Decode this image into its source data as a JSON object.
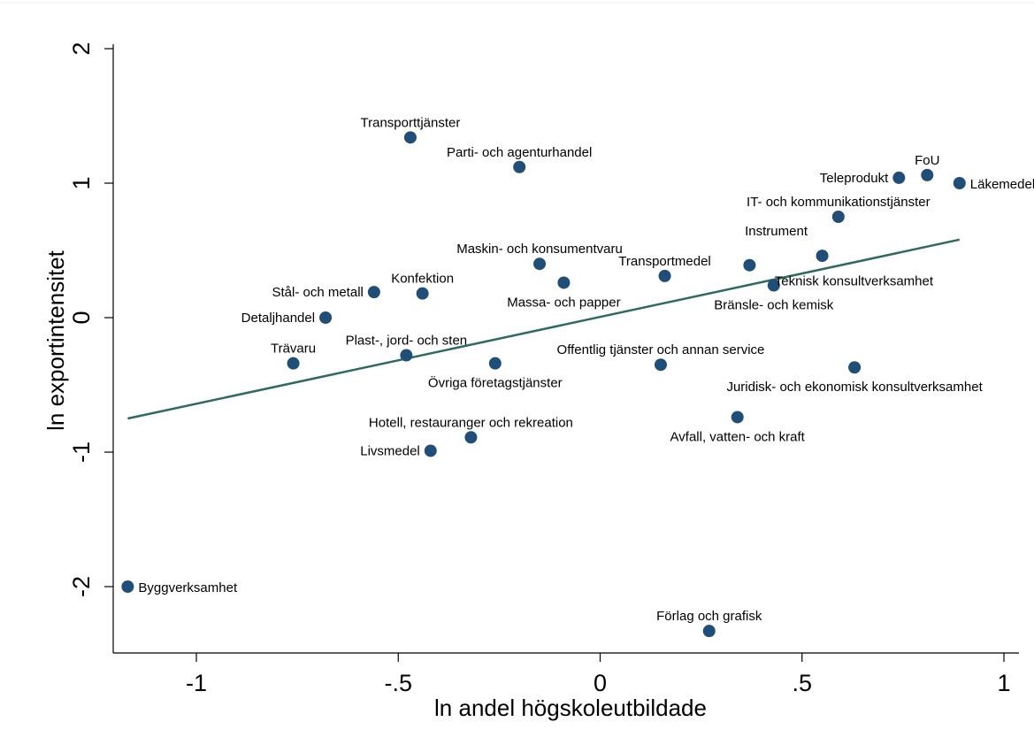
{
  "chart_data": {
    "type": "scatter",
    "title": "",
    "xlabel": "ln andel högskoleutbildade",
    "ylabel": "ln exportintensitet",
    "xlim": [
      -1.2,
      1.05
    ],
    "ylim": [
      -2.45,
      2.1
    ],
    "xticks": [
      {
        "value": -1,
        "label": "-1"
      },
      {
        "value": -0.5,
        "label": "-.5"
      },
      {
        "value": 0,
        "label": "0"
      },
      {
        "value": 0.5,
        "label": ".5"
      },
      {
        "value": 1,
        "label": "1"
      }
    ],
    "yticks": [
      {
        "value": -2,
        "label": "-2"
      },
      {
        "value": -1,
        "label": "-1"
      },
      {
        "value": 0,
        "label": "0"
      },
      {
        "value": 1,
        "label": "1"
      },
      {
        "value": 2,
        "label": "2"
      }
    ],
    "grid": false,
    "legend": "none",
    "colors": {
      "marker": "#1f4e79",
      "fit_line": "#2e6b5e"
    },
    "fit_line": {
      "x": [
        -1.17,
        0.89
      ],
      "y": [
        -0.75,
        0.58
      ]
    },
    "points": [
      {
        "label": "Transporttjänster",
        "x": -0.47,
        "y": 1.34,
        "pos": "above"
      },
      {
        "label": "Parti- och agenturhandel",
        "x": -0.2,
        "y": 1.12,
        "pos": "above"
      },
      {
        "label": "FoU",
        "x": 0.81,
        "y": 1.06,
        "pos": "above"
      },
      {
        "label": "Teleprodukt",
        "x": 0.74,
        "y": 1.04,
        "pos": "left"
      },
      {
        "label": "Läkemedel",
        "x": 0.89,
        "y": 1.0,
        "pos": "right"
      },
      {
        "label": "IT- och kommunikationstjänster",
        "x": 0.59,
        "y": 0.75,
        "pos": "above"
      },
      {
        "label": "Instrument",
        "x": 0.55,
        "y": 0.46,
        "pos": "upleft"
      },
      {
        "label": "Maskin- och konsumentvaru",
        "x": -0.15,
        "y": 0.4,
        "pos": "above"
      },
      {
        "label": "Transportmedel",
        "x": 0.16,
        "y": 0.31,
        "pos": "above"
      },
      {
        "label": "Teknisk konsultverksamhet",
        "x": 0.37,
        "y": 0.39,
        "pos": "belowright"
      },
      {
        "label": "Massa- och papper",
        "x": -0.09,
        "y": 0.26,
        "pos": "below"
      },
      {
        "label": "Bränsle- och kemisk",
        "x": 0.43,
        "y": 0.24,
        "pos": "below"
      },
      {
        "label": "Konfektion",
        "x": -0.44,
        "y": 0.18,
        "pos": "above"
      },
      {
        "label": "Stål- och metall",
        "x": -0.56,
        "y": 0.19,
        "pos": "left"
      },
      {
        "label": "Detaljhandel",
        "x": -0.68,
        "y": 0.0,
        "pos": "left"
      },
      {
        "label": "Plast-, jord- och sten",
        "x": -0.48,
        "y": -0.28,
        "pos": "above"
      },
      {
        "label": "Trävaru",
        "x": -0.76,
        "y": -0.34,
        "pos": "above"
      },
      {
        "label": "Övriga företagstjänster",
        "x": -0.26,
        "y": -0.34,
        "pos": "below"
      },
      {
        "label": "Offentlig tjänster och annan service",
        "x": 0.15,
        "y": -0.35,
        "pos": "above"
      },
      {
        "label": "Juridisk- och ekonomisk konsultverksamhet",
        "x": 0.63,
        "y": -0.37,
        "pos": "below"
      },
      {
        "label": "Avfall, vatten- och kraft",
        "x": 0.34,
        "y": -0.74,
        "pos": "below"
      },
      {
        "label": "Hotell, restauranger och rekreation",
        "x": -0.32,
        "y": -0.89,
        "pos": "above"
      },
      {
        "label": "Livsmedel",
        "x": -0.42,
        "y": -0.99,
        "pos": "left"
      },
      {
        "label": "Byggverksamhet",
        "x": -1.17,
        "y": -2.0,
        "pos": "right"
      },
      {
        "label": "Förlag och grafisk",
        "x": 0.27,
        "y": -2.33,
        "pos": "above"
      }
    ]
  }
}
